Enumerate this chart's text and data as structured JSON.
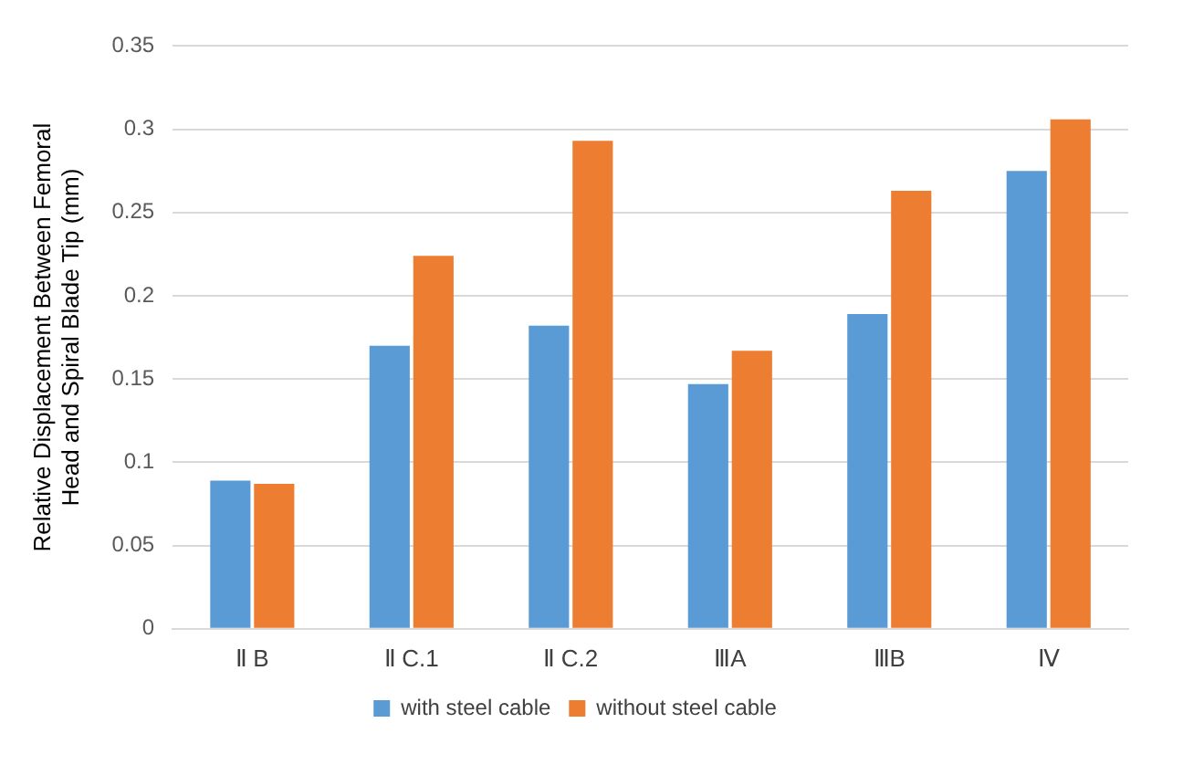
{
  "chart_data": {
    "type": "bar",
    "ylabel": "Relative Displacement Between Femoral Head and Spiral Blade Tip (mm)",
    "categories": [
      "Ⅱ B",
      "Ⅱ C.1",
      "Ⅱ C.2",
      "ⅢA",
      "ⅢB",
      "Ⅳ"
    ],
    "series": [
      {
        "name": "with steel cable",
        "color": "#5b9bd5",
        "values": [
          0.089,
          0.17,
          0.182,
          0.147,
          0.189,
          0.275
        ]
      },
      {
        "name": "without steel cable",
        "color": "#ed7d31",
        "values": [
          0.087,
          0.224,
          0.293,
          0.167,
          0.263,
          0.306
        ]
      }
    ],
    "ylim": [
      0,
      0.35
    ],
    "yticks": [
      0,
      0.05,
      0.1,
      0.15,
      0.2,
      0.25,
      0.3,
      0.35
    ],
    "grid": "y",
    "legend": "bottom"
  }
}
